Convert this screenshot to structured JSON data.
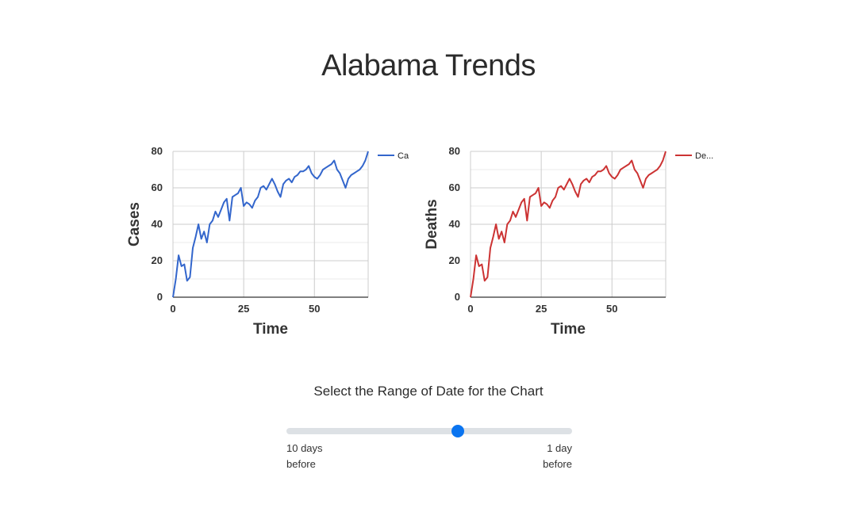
{
  "page": {
    "title": "Alabama Trends"
  },
  "slider": {
    "title": "Select the Range of Date for the Chart",
    "min_label_line1": "10 days",
    "min_label_line2": "before",
    "max_label_line1": "1 day",
    "max_label_line2": "before",
    "value_fraction": 0.6
  },
  "colors": {
    "cases_line": "#3366cc",
    "deaths_line": "#cc3333",
    "slider_thumb": "#0a74f0"
  },
  "chart_data": [
    {
      "type": "line",
      "xlabel": "Time",
      "ylabel": "Cases",
      "xlim": [
        0,
        69
      ],
      "ylim": [
        0,
        80
      ],
      "xticks": [
        0,
        25,
        50
      ],
      "yticks": [
        0,
        20,
        40,
        60,
        80
      ],
      "grid": true,
      "legend_position": "top-right",
      "series": [
        {
          "name": "Ca",
          "color": "#3366cc",
          "x": [
            0,
            1,
            2,
            3,
            4,
            5,
            6,
            7,
            8,
            9,
            10,
            11,
            12,
            13,
            14,
            15,
            16,
            17,
            18,
            19,
            20,
            21,
            22,
            23,
            24,
            25,
            26,
            27,
            28,
            29,
            30,
            31,
            32,
            33,
            34,
            35,
            36,
            37,
            38,
            39,
            40,
            41,
            42,
            43,
            44,
            45,
            46,
            47,
            48,
            49,
            50,
            51,
            52,
            53,
            54,
            55,
            56,
            57,
            58,
            59,
            60,
            61,
            62,
            63,
            64,
            65,
            66,
            67,
            68,
            69
          ],
          "y": [
            0,
            10,
            23,
            17,
            18,
            9,
            11,
            27,
            33,
            40,
            32,
            36,
            30,
            40,
            42,
            47,
            44,
            48,
            52,
            54,
            42,
            55,
            56,
            57,
            60,
            50,
            52,
            51,
            49,
            53,
            55,
            60,
            61,
            59,
            62,
            65,
            62,
            58,
            55,
            62,
            64,
            65,
            63,
            66,
            67,
            69,
            69,
            70,
            72,
            68,
            66,
            65,
            67,
            70,
            71,
            72,
            73,
            75,
            70,
            68,
            64,
            60,
            65,
            67,
            68,
            69,
            70,
            72,
            75,
            80
          ]
        }
      ]
    },
    {
      "type": "line",
      "xlabel": "Time",
      "ylabel": "Deaths",
      "xlim": [
        0,
        69
      ],
      "ylim": [
        0,
        80
      ],
      "xticks": [
        0,
        25,
        50
      ],
      "yticks": [
        0,
        20,
        40,
        60,
        80
      ],
      "grid": true,
      "legend_position": "top-right",
      "series": [
        {
          "name": "De...",
          "color": "#cc3333",
          "x": [
            0,
            1,
            2,
            3,
            4,
            5,
            6,
            7,
            8,
            9,
            10,
            11,
            12,
            13,
            14,
            15,
            16,
            17,
            18,
            19,
            20,
            21,
            22,
            23,
            24,
            25,
            26,
            27,
            28,
            29,
            30,
            31,
            32,
            33,
            34,
            35,
            36,
            37,
            38,
            39,
            40,
            41,
            42,
            43,
            44,
            45,
            46,
            47,
            48,
            49,
            50,
            51,
            52,
            53,
            54,
            55,
            56,
            57,
            58,
            59,
            60,
            61,
            62,
            63,
            64,
            65,
            66,
            67,
            68,
            69
          ],
          "y": [
            0,
            10,
            23,
            17,
            18,
            9,
            11,
            27,
            33,
            40,
            32,
            36,
            30,
            40,
            42,
            47,
            44,
            48,
            52,
            54,
            42,
            55,
            56,
            57,
            60,
            50,
            52,
            51,
            49,
            53,
            55,
            60,
            61,
            59,
            62,
            65,
            62,
            58,
            55,
            62,
            64,
            65,
            63,
            66,
            67,
            69,
            69,
            70,
            72,
            68,
            66,
            65,
            67,
            70,
            71,
            72,
            73,
            75,
            70,
            68,
            64,
            60,
            65,
            67,
            68,
            69,
            70,
            72,
            75,
            80
          ]
        }
      ]
    }
  ]
}
